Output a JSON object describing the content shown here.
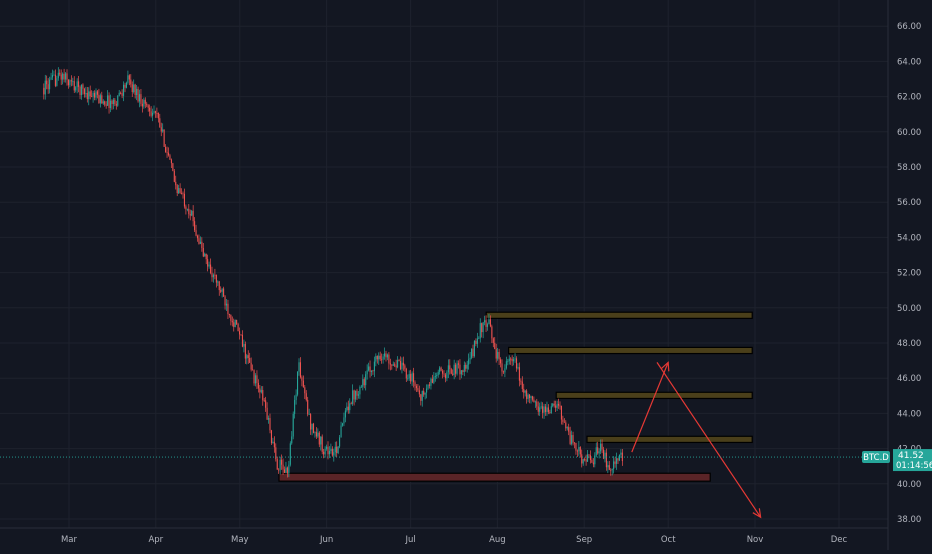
{
  "chart_data": {
    "type": "candlestick",
    "symbol": "BTC.D",
    "last_price": "41.52",
    "countdown": "01:14:56",
    "y_ticks": [
      "66.00",
      "64.00",
      "62.00",
      "60.00",
      "58.00",
      "56.00",
      "54.00",
      "52.00",
      "50.00",
      "48.00",
      "46.00",
      "44.00",
      "42.00",
      "40.00",
      "38.00"
    ],
    "y_tick_values": [
      66,
      64,
      62,
      60,
      58,
      56,
      54,
      52,
      50,
      48,
      46,
      44,
      42,
      40,
      38
    ],
    "x_ticks": [
      "Mar",
      "Apr",
      "May",
      "Jun",
      "Jul",
      "Aug",
      "Sep",
      "Oct",
      "Nov",
      "Dec"
    ],
    "ylim": [
      37.4,
      67.6
    ],
    "grid": true,
    "series": [
      {
        "path_points": [
          [
            "Feb 20",
            62.5
          ],
          [
            "Feb 26",
            63.2
          ],
          [
            "Mar 3",
            62.6
          ],
          [
            "Mar 10",
            62.0
          ],
          [
            "Mar 17",
            61.6
          ],
          [
            "Mar 22",
            62.9
          ],
          [
            "Mar 27",
            61.8
          ],
          [
            "Apr 1",
            61.0
          ],
          [
            "Apr 4",
            59.5
          ],
          [
            "Apr 8",
            57.0
          ],
          [
            "Apr 13",
            55.6
          ],
          [
            "Apr 18",
            53.0
          ],
          [
            "Apr 24",
            51.0
          ],
          [
            "Apr 30",
            48.8
          ],
          [
            "May 5",
            46.5
          ],
          [
            "May 10",
            44.5
          ],
          [
            "May 14",
            41.2
          ],
          [
            "May 18",
            40.6
          ],
          [
            "May 22",
            46.8
          ],
          [
            "May 26",
            43.5
          ],
          [
            "May 31",
            42.0
          ],
          [
            "Jun 4",
            41.7
          ],
          [
            "Jun 9",
            44.7
          ],
          [
            "Jun 14",
            45.8
          ],
          [
            "Jun 20",
            47.4
          ],
          [
            "Jun 26",
            46.8
          ],
          [
            "Jul 1",
            46.1
          ],
          [
            "Jul 5",
            44.9
          ],
          [
            "Jul 10",
            46.2
          ],
          [
            "Jul 16",
            46.5
          ],
          [
            "Jul 21",
            46.5
          ],
          [
            "Jul 26",
            48.9
          ],
          [
            "Jul 29",
            49.0
          ],
          [
            "Aug 2",
            46.6
          ],
          [
            "Aug 7",
            47.0
          ],
          [
            "Aug 10",
            45.4
          ],
          [
            "Aug 14",
            44.5
          ],
          [
            "Aug 18",
            44.2
          ],
          [
            "Aug 23",
            44.4
          ],
          [
            "Aug 27",
            42.6
          ],
          [
            "Aug 31",
            41.5
          ],
          [
            "Sep 4",
            41.2
          ],
          [
            "Sep 7",
            42.4
          ],
          [
            "Sep 9",
            41.0
          ],
          [
            "Sep 12",
            41.2
          ],
          [
            "Sep 15",
            41.5
          ]
        ]
      }
    ],
    "annotations": {
      "resistance_zones": [
        {
          "label": "zone-49.6",
          "x0": "Jul 28",
          "x1": "Oct 31",
          "y0": 49.4,
          "y1": 49.75
        },
        {
          "label": "zone-47.6",
          "x0": "Aug 5",
          "x1": "Oct 31",
          "y0": 47.4,
          "y1": 47.75
        },
        {
          "label": "zone-45.0",
          "x0": "Aug 22",
          "x1": "Oct 31",
          "y0": 44.85,
          "y1": 45.2
        },
        {
          "label": "zone-42.5",
          "x0": "Sep 2",
          "x1": "Oct 31",
          "y0": 42.35,
          "y1": 42.7
        }
      ],
      "support_zone": {
        "label": "zone-40.3",
        "x0": "May 15",
        "x1": "Oct 16",
        "y0": 40.15,
        "y1": 40.6
      },
      "arrows": [
        {
          "label": "arrow-up",
          "from": [
            "Sep 18",
            41.8
          ],
          "to": [
            "Oct 1",
            46.9
          ]
        },
        {
          "label": "arrow-down",
          "from": [
            "Sep 27",
            46.9
          ],
          "to": [
            "Nov 3",
            38.1
          ]
        }
      ],
      "last_price_value": 41.52
    }
  },
  "colors": {
    "background": "#131722",
    "grid": "#1e222d",
    "axis_text": "#b2b5be",
    "up": "#26a69a",
    "down": "#ef5350",
    "resistance_fill": "#4a3f1a",
    "support_fill": "#5a2427",
    "arrow": "#e53935"
  }
}
